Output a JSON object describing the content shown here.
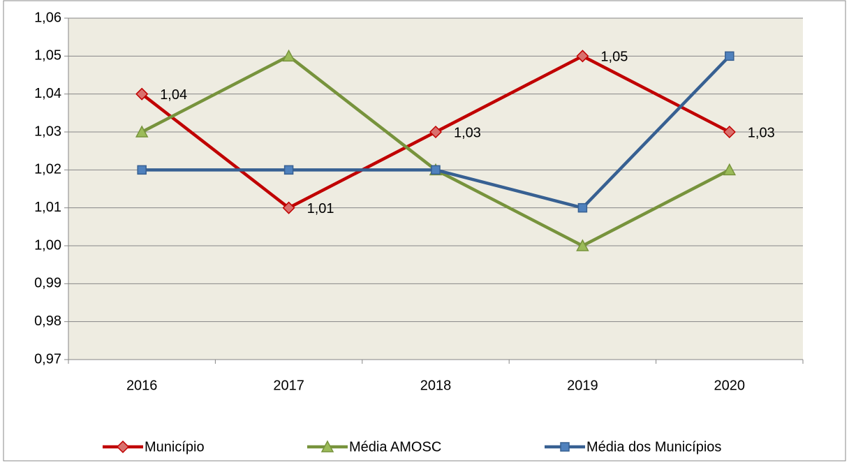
{
  "chart_data": {
    "type": "line",
    "categories": [
      "2016",
      "2017",
      "2018",
      "2019",
      "2020"
    ],
    "series": [
      {
        "name": "Município",
        "color": "#c00000",
        "values": [
          1.04,
          1.01,
          1.03,
          1.05,
          1.03
        ],
        "value_labels": [
          "1,04",
          "1,01",
          "1,03",
          "1,05",
          "1,03"
        ],
        "marker": "diamond"
      },
      {
        "name": "Média AMOSC",
        "color": "#77933c",
        "values": [
          1.03,
          1.05,
          1.02,
          1.0,
          1.02
        ],
        "marker": "triangle"
      },
      {
        "name": "Média dos Municípios",
        "color": "#376092",
        "values": [
          1.02,
          1.02,
          1.02,
          1.01,
          1.05
        ],
        "marker": "square"
      }
    ],
    "ylim": [
      0.97,
      1.06
    ],
    "yticks": [
      {
        "value": 0.97,
        "label": "0,97"
      },
      {
        "value": 0.98,
        "label": "0,98"
      },
      {
        "value": 0.99,
        "label": "0,99"
      },
      {
        "value": 1.0,
        "label": "1,00"
      },
      {
        "value": 1.01,
        "label": "1,01"
      },
      {
        "value": 1.02,
        "label": "1,02"
      },
      {
        "value": 1.03,
        "label": "1,03"
      },
      {
        "value": 1.04,
        "label": "1,04"
      },
      {
        "value": 1.05,
        "label": "1,05"
      },
      {
        "value": 1.06,
        "label": "1,06"
      }
    ],
    "grid": true,
    "legend": "bottom",
    "plot_background": "#eeece1"
  }
}
